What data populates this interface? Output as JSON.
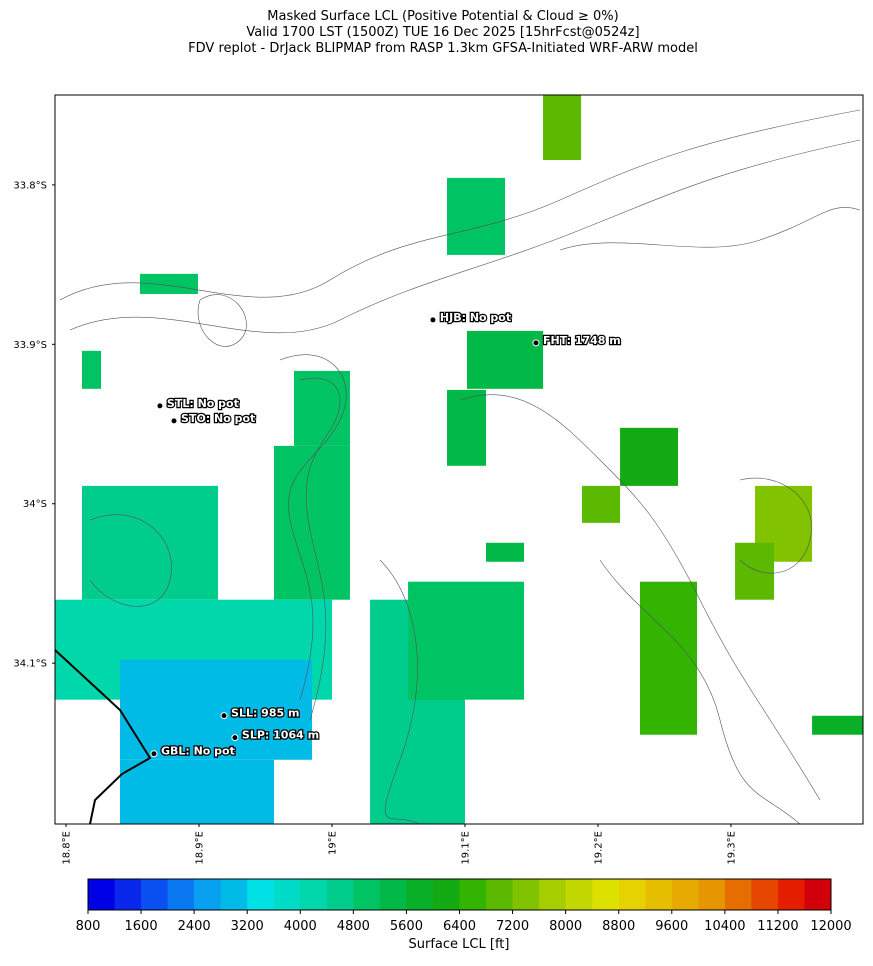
{
  "header": {
    "title_lines": [
      "Masked Surface LCL (Positive Potential & Cloud ≥ 0%)",
      "Valid 1700 LST (1500Z) TUE 16 Dec 2025 [15hrFcst@0524z]",
      "FDV replot - DrJack BLIPMAP from RASP 1.3km GFSA-Initiated WRF-ARW model"
    ]
  },
  "map": {
    "lon_range": [
      18.7917,
      19.3993
    ],
    "lat_range": [
      33.7436,
      34.2009
    ],
    "lon_ticks": [
      {
        "value": 18.8,
        "label": "18.8°E"
      },
      {
        "value": 18.9,
        "label": "18.9°E"
      },
      {
        "value": 19.0,
        "label": "19°E"
      },
      {
        "value": 19.1,
        "label": "19.1°E"
      },
      {
        "value": 19.2,
        "label": "19.2°E"
      },
      {
        "value": 19.3,
        "label": "19.3°E"
      }
    ],
    "lat_ticks": [
      {
        "value": 33.8,
        "label": "33.8°S"
      },
      {
        "value": 33.9,
        "label": "33.9°S"
      },
      {
        "value": 34.0,
        "label": "34°S"
      },
      {
        "value": 34.1,
        "label": "34.1°S"
      }
    ],
    "stations": [
      {
        "lon": 19.0759,
        "lat": 33.8847,
        "label": "HJB: No pot"
      },
      {
        "lon": 19.1534,
        "lat": 33.8991,
        "label": "FHT: 1748 m"
      },
      {
        "lon": 18.8706,
        "lat": 33.9386,
        "label": "STL: No pot"
      },
      {
        "lon": 18.8812,
        "lat": 33.948,
        "label": "STO: No pot"
      },
      {
        "lon": 18.9188,
        "lat": 34.1329,
        "label": "SLL: 985 m"
      },
      {
        "lon": 18.927,
        "lat": 34.1467,
        "label": "SLP: 1064 m"
      },
      {
        "lon": 18.8661,
        "lat": 34.1568,
        "label": "GBL: No pot"
      }
    ],
    "patches": [
      {
        "lon": [
          19.1587,
          19.1873
        ],
        "lat": [
          33.7436,
          33.7844
        ],
        "value": 7000
      },
      {
        "lon": [
          19.0865,
          19.1301
        ],
        "lat": [
          33.7956,
          33.8439
        ],
        "value": 5000
      },
      {
        "lon": [
          18.8556,
          18.8992
        ],
        "lat": [
          33.8558,
          33.8684
        ],
        "value": 4800
      },
      {
        "lon": [
          18.812,
          18.8263
        ],
        "lat": [
          33.9041,
          33.9279
        ],
        "value": 4800
      },
      {
        "lon": [
          19.1015,
          19.1587
        ],
        "lat": [
          33.8916,
          33.9279
        ],
        "value": 5400
      },
      {
        "lon": [
          18.9714,
          19.0135
        ],
        "lat": [
          33.9167,
          33.9637
        ],
        "value": 4900
      },
      {
        "lon": [
          19.0865,
          19.1158
        ],
        "lat": [
          33.9286,
          33.9762
        ],
        "value": 5200
      },
      {
        "lon": [
          19.2166,
          19.2602
        ],
        "lat": [
          33.9524,
          33.9888
        ],
        "value": 6000
      },
      {
        "lon": [
          19.188,
          19.2166
        ],
        "lat": [
          33.9888,
          34.012
        ],
        "value": 6800
      },
      {
        "lon": [
          19.3181,
          19.361
        ],
        "lat": [
          33.9888,
          34.0364
        ],
        "value": 7200
      },
      {
        "lon": [
          19.3031,
          19.3324
        ],
        "lat": [
          34.0245,
          34.0602
        ],
        "value": 6900
      },
      {
        "lon": [
          18.812,
          18.9143
        ],
        "lat": [
          33.9888,
          34.0602
        ],
        "value": 4400
      },
      {
        "lon": [
          18.9564,
          19.0135
        ],
        "lat": [
          33.9637,
          34.0602
        ],
        "value": 4800
      },
      {
        "lon": [
          18.7917,
          19.0
        ],
        "lat": [
          34.0602,
          34.1229
        ],
        "value": 4000
      },
      {
        "lon": [
          18.8406,
          18.985
        ],
        "lat": [
          34.0979,
          34.1606
        ],
        "value": 3000
      },
      {
        "lon": [
          18.8406,
          18.9564
        ],
        "lat": [
          34.1606,
          34.2007
        ],
        "value": 2900
      },
      {
        "lon": [
          19.0286,
          19.1
        ],
        "lat": [
          34.0602,
          34.2007
        ],
        "value": 4400
      },
      {
        "lon": [
          19.0572,
          19.1444
        ],
        "lat": [
          34.0489,
          34.1229
        ],
        "value": 5000
      },
      {
        "lon": [
          19.2316,
          19.2745
        ],
        "lat": [
          34.0489,
          34.1449
        ],
        "value": 6500
      },
      {
        "lon": [
          19.361,
          19.3993
        ],
        "lat": [
          34.133,
          34.1449
        ],
        "value": 5600
      },
      {
        "lon": [
          19.1158,
          19.1444
        ],
        "lat": [
          34.0245,
          34.0364
        ],
        "value": 5200
      }
    ]
  },
  "colorbar": {
    "clim": [
      800,
      12000
    ],
    "colors": [
      "#0000e6",
      "#0a28eb",
      "#0a50f0",
      "#0a78f0",
      "#0aa0f0",
      "#00bbe6",
      "#00e1e6",
      "#00dcc8",
      "#00d7aa",
      "#00cd8c",
      "#00c364",
      "#00b946",
      "#0aaf28",
      "#14aa14",
      "#32b400",
      "#5ab900",
      "#82c300",
      "#a5cd00",
      "#c3d700",
      "#dce100",
      "#e6d200",
      "#e6be00",
      "#e6aa00",
      "#e69600",
      "#e66e00",
      "#e64600",
      "#e61e00",
      "#d2000a"
    ],
    "ticks": [
      800,
      1600,
      2400,
      3200,
      4000,
      4800,
      5600,
      6400,
      7200,
      8000,
      8800,
      9600,
      10400,
      11200,
      12000
    ],
    "label": "Surface LCL [ft]"
  }
}
